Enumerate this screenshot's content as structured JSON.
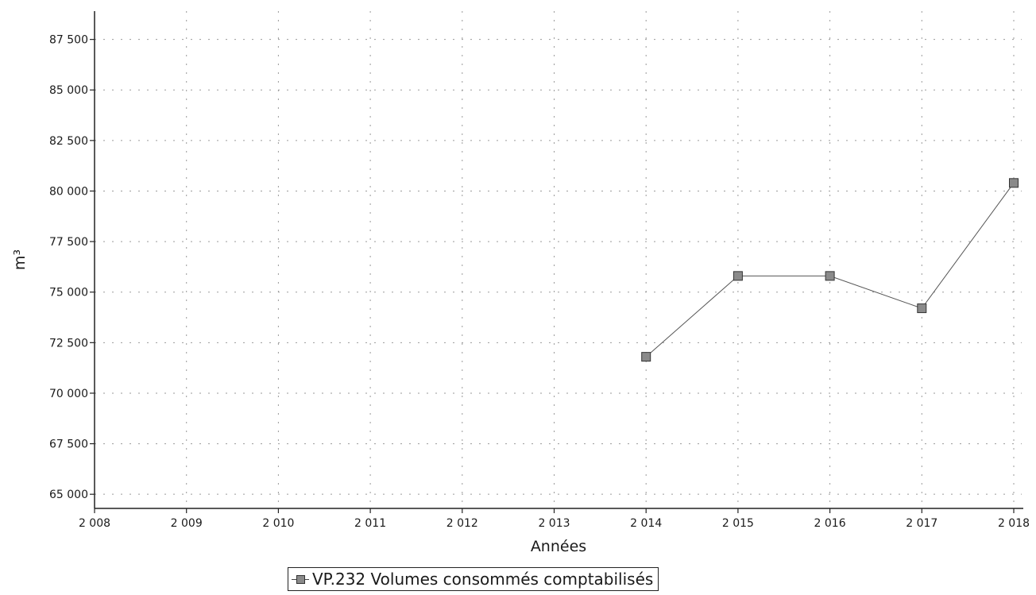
{
  "chart_data": {
    "type": "line",
    "xlabel": "Années",
    "ylabel": "m³",
    "x": [
      2008,
      2009,
      2010,
      2011,
      2012,
      2013,
      2014,
      2015,
      2016,
      2017,
      2018
    ],
    "x_tick_labels": [
      "2 008",
      "2 009",
      "2 010",
      "2 011",
      "2 012",
      "2 013",
      "2 014",
      "2 015",
      "2 016",
      "2 017",
      "2 018"
    ],
    "y_ticks": [
      65000,
      67500,
      70000,
      72500,
      75000,
      77500,
      80000,
      82500,
      85000,
      87500
    ],
    "y_tick_labels": [
      "65 000",
      "67 500",
      "70 000",
      "72 500",
      "75 000",
      "77 500",
      "80 000",
      "82 500",
      "85 000",
      "87 500"
    ],
    "xlim": [
      2008,
      2018
    ],
    "ylim": [
      64300,
      88900
    ],
    "grid": true,
    "legend_position": "bottom-center",
    "series": [
      {
        "name": "VP.232 Volumes consommés comptabilisés",
        "x": [
          2014,
          2015,
          2016,
          2017,
          2018
        ],
        "values": [
          71800,
          75800,
          75800,
          74200,
          80400
        ],
        "color": "#8a8a8a",
        "marker": "square"
      }
    ]
  }
}
